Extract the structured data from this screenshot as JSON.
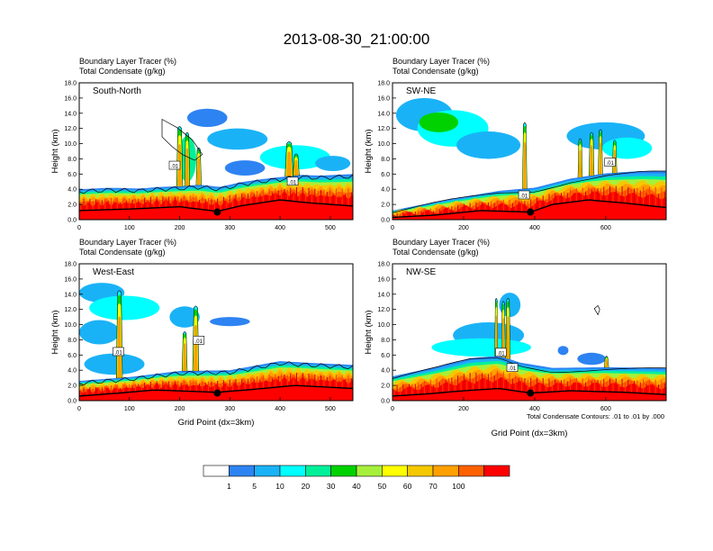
{
  "title": "2013-08-30_21:00:00",
  "panel_titles": {
    "tracer_label": "Boundary Layer Tracer",
    "tracer_units": "(%)",
    "cond_label": "Total Condensate",
    "cond_units": "(g/kg)"
  },
  "ylabel": "Height (km)",
  "xlabel": "Grid Point (dx=3km)",
  "contour_note": "Total Condensate Contours: .01 to .01 by .000",
  "colorbar": {
    "levels": [
      "1",
      "5",
      "10",
      "20",
      "30",
      "40",
      "50",
      "60",
      "70",
      "100"
    ],
    "colors": [
      "#ffffff",
      "#2e83f2",
      "#1ab2f7",
      "#00ffff",
      "#00f09a",
      "#00d200",
      "#a6f03c",
      "#ffff00",
      "#f5c800",
      "#ffa000",
      "#ff6000",
      "#ff0000"
    ]
  },
  "chart_data": [
    {
      "type": "heatmap",
      "name": "South-North",
      "xlim": [
        0,
        545
      ],
      "xticks": [
        "0",
        "100",
        "200",
        "300",
        "400",
        "500"
      ],
      "xtick_values": [
        0,
        100,
        200,
        300,
        400,
        500
      ],
      "ylim": [
        0,
        18
      ],
      "yticks": [
        "0.0",
        "2.0",
        "4.0",
        "6.0",
        "8.0",
        "10.0",
        "12.0",
        "14.0",
        "16.0",
        "18.0"
      ],
      "marker": {
        "x": 275,
        "y": 1.0
      },
      "boundary_layer_top": [
        [
          0,
          4.0
        ],
        [
          60,
          4.2
        ],
        [
          120,
          4.1
        ],
        [
          160,
          4.3
        ],
        [
          200,
          4.4
        ],
        [
          240,
          4.6
        ],
        [
          280,
          4.3
        ],
        [
          320,
          4.9
        ],
        [
          360,
          5.3
        ],
        [
          400,
          5.6
        ],
        [
          440,
          5.9
        ],
        [
          480,
          5.8
        ],
        [
          545,
          6.0
        ]
      ],
      "surface": [
        [
          0,
          1.2
        ],
        [
          100,
          1.4
        ],
        [
          200,
          1.7
        ],
        [
          275,
          1.1
        ],
        [
          320,
          1.8
        ],
        [
          400,
          2.6
        ],
        [
          460,
          2.2
        ],
        [
          545,
          1.8
        ]
      ],
      "contour_labels": [
        {
          "x": 190,
          "y": 7.1,
          "text": ".01"
        },
        {
          "x": 425,
          "y": 5.0,
          "text": ".01"
        }
      ],
      "outline": [
        [
          165,
          13.2
        ],
        [
          195,
          12.1
        ],
        [
          225,
          10.5
        ],
        [
          245,
          8.6
        ],
        [
          230,
          7.8
        ],
        [
          205,
          8.6
        ],
        [
          185,
          9.6
        ],
        [
          165,
          10.9
        ]
      ]
    },
    {
      "type": "heatmap",
      "name": "SW-NE",
      "xlim": [
        0,
        770
      ],
      "xticks": [
        "0",
        "200",
        "400",
        "600"
      ],
      "xtick_values": [
        0,
        200,
        400,
        600
      ],
      "ylim": [
        0,
        18
      ],
      "yticks": [
        "0.0",
        "2.0",
        "4.0",
        "6.0",
        "8.0",
        "10.0",
        "12.0",
        "14.0",
        "16.0",
        "18.0"
      ],
      "marker": {
        "x": 388,
        "y": 1.0
      },
      "boundary_layer_top": [
        [
          0,
          1.2
        ],
        [
          150,
          2.6
        ],
        [
          300,
          3.8
        ],
        [
          400,
          4.2
        ],
        [
          500,
          5.4
        ],
        [
          600,
          6.1
        ],
        [
          700,
          6.4
        ],
        [
          770,
          6.4
        ]
      ],
      "surface": [
        [
          0,
          0.3
        ],
        [
          120,
          0.6
        ],
        [
          250,
          1.2
        ],
        [
          388,
          1.0
        ],
        [
          450,
          2.0
        ],
        [
          550,
          2.6
        ],
        [
          650,
          2.2
        ],
        [
          770,
          1.6
        ]
      ],
      "contour_labels": [
        {
          "x": 370,
          "y": 3.2,
          "text": ".01"
        },
        {
          "x": 612,
          "y": 7.5,
          "text": ".01"
        }
      ],
      "outline": []
    },
    {
      "type": "heatmap",
      "name": "West-East",
      "xlim": [
        0,
        545
      ],
      "xticks": [
        "0",
        "100",
        "200",
        "300",
        "400",
        "500"
      ],
      "xtick_values": [
        0,
        100,
        200,
        300,
        400,
        500
      ],
      "ylim": [
        0,
        18
      ],
      "yticks": [
        "0.0",
        "2.0",
        "4.0",
        "6.0",
        "8.0",
        "10.0",
        "12.0",
        "14.0",
        "16.0",
        "18.0"
      ],
      "marker": {
        "x": 275,
        "y": 1.0
      },
      "boundary_layer_top": [
        [
          0,
          2.6
        ],
        [
          100,
          3.1
        ],
        [
          200,
          3.9
        ],
        [
          300,
          4.0
        ],
        [
          400,
          5.2
        ],
        [
          450,
          5.0
        ],
        [
          545,
          4.7
        ]
      ],
      "surface": [
        [
          0,
          0.6
        ],
        [
          80,
          1.0
        ],
        [
          150,
          1.4
        ],
        [
          275,
          1.1
        ],
        [
          350,
          1.5
        ],
        [
          430,
          2.0
        ],
        [
          545,
          1.6
        ]
      ],
      "contour_labels": [
        {
          "x": 78,
          "y": 6.4,
          "text": ".01"
        },
        {
          "x": 238,
          "y": 7.9,
          "text": ".01"
        }
      ],
      "outline": []
    },
    {
      "type": "heatmap",
      "name": "NW-SE",
      "xlim": [
        0,
        770
      ],
      "xticks": [
        "0",
        "200",
        "400",
        "600"
      ],
      "xtick_values": [
        0,
        200,
        400,
        600
      ],
      "ylim": [
        0,
        18
      ],
      "yticks": [
        "0.0",
        "2.0",
        "4.0",
        "6.0",
        "8.0",
        "10.0",
        "12.0",
        "14.0",
        "16.0",
        "18.0"
      ],
      "marker": {
        "x": 388,
        "y": 1.0
      },
      "boundary_layer_top": [
        [
          0,
          3.2
        ],
        [
          120,
          4.4
        ],
        [
          220,
          5.6
        ],
        [
          300,
          5.9
        ],
        [
          360,
          5.0
        ],
        [
          450,
          4.3
        ],
        [
          600,
          4.4
        ],
        [
          770,
          4.3
        ]
      ],
      "surface": [
        [
          0,
          0.6
        ],
        [
          100,
          0.9
        ],
        [
          200,
          1.3
        ],
        [
          300,
          1.6
        ],
        [
          388,
          1.0
        ],
        [
          500,
          1.3
        ],
        [
          650,
          1.1
        ],
        [
          770,
          0.8
        ]
      ],
      "contour_labels": [
        {
          "x": 305,
          "y": 6.3,
          "text": ".01"
        },
        {
          "x": 337,
          "y": 4.3,
          "text": ".01"
        }
      ],
      "outline": [
        [
          568,
          12.1
        ],
        [
          578,
          11.3
        ],
        [
          583,
          12.0
        ],
        [
          578,
          12.5
        ]
      ]
    }
  ]
}
